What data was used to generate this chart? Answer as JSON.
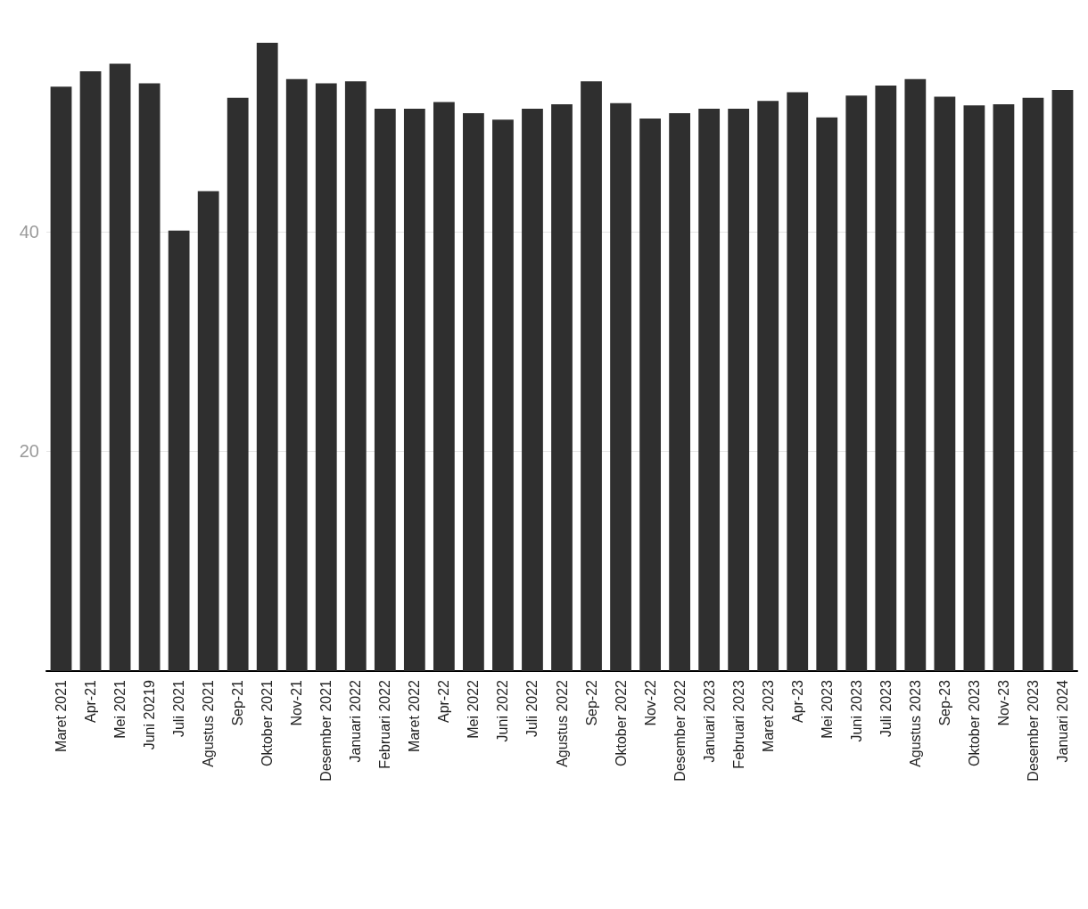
{
  "chart_data": {
    "type": "bar",
    "categories": [
      "Maret 2021",
      "Apr-21",
      "Mei 2021",
      "Juni 20219",
      "Juli 2021",
      "Agustus 2021",
      "Sep-21",
      "Oktober 2021",
      "Nov-21",
      "Desember 2021",
      "Januari 2022",
      "Februari 2022",
      "Maret 2022",
      "Apr-22",
      "Mei 2022",
      "Juni 2022",
      "Juli 2022",
      "Agustus 2022",
      "Sep-22",
      "Oktober 2022",
      "Nov-22",
      "Desember 2022",
      "Januari 2023",
      "Februari 2023",
      "Maret 2023",
      "Apr-23",
      "Mei 2023",
      "Juni 2023",
      "Juli 2023",
      "Agustus 2023",
      "Sep-23",
      "Oktober 2023",
      "Nov-23",
      "Desember 2023",
      "Januari 2024"
    ],
    "values": [
      53.2,
      54.6,
      55.3,
      53.5,
      40.1,
      43.7,
      52.2,
      57.2,
      53.9,
      53.5,
      53.7,
      51.2,
      51.2,
      51.8,
      50.8,
      50.2,
      51.2,
      51.6,
      53.7,
      51.7,
      50.3,
      50.8,
      51.2,
      51.2,
      51.9,
      52.7,
      50.4,
      52.4,
      53.3,
      53.9,
      52.3,
      51.5,
      51.6,
      52.2,
      52.9
    ],
    "color": "#2f2f2f",
    "ylim": [
      0,
      57.2
    ],
    "yticks": [
      20,
      40
    ],
    "grid": "y"
  }
}
